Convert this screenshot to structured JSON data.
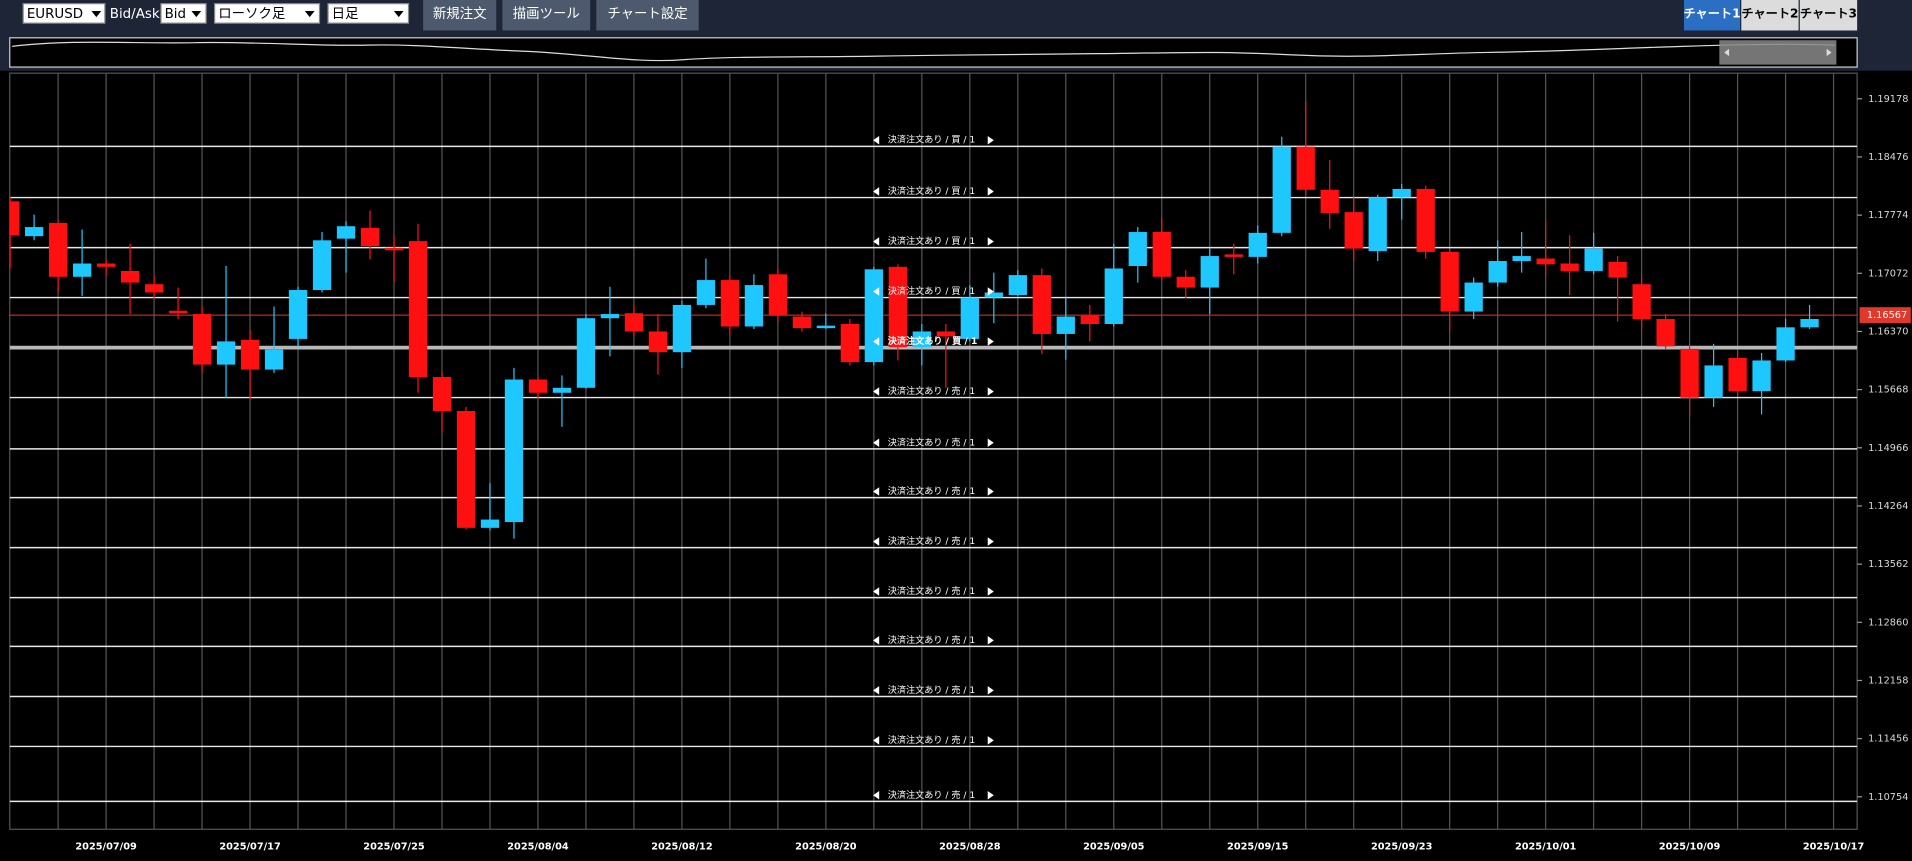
{
  "toolbar": {
    "symbol": "EURUSD",
    "bidask_label": "Bid/Ask",
    "bidask": "Bid",
    "chart_style": "ローソク足",
    "period": "日足",
    "buttons": [
      "新規注文",
      "描画ツール",
      "チャート設定"
    ],
    "tabs": [
      "チャート1",
      "チャート2",
      "チャート3"
    ]
  },
  "chart_data": {
    "type": "candlestick",
    "x": [
      "2025/07/03",
      "2025/07/04",
      "2025/07/07",
      "2025/07/08",
      "2025/07/09",
      "2025/07/10",
      "2025/07/11",
      "2025/07/14",
      "2025/07/15",
      "2025/07/16",
      "2025/07/17",
      "2025/07/18",
      "2025/07/21",
      "2025/07/22",
      "2025/07/23",
      "2025/07/24",
      "2025/07/25",
      "2025/07/28",
      "2025/07/29",
      "2025/07/30",
      "2025/07/31",
      "2025/08/01",
      "2025/08/04",
      "2025/08/05",
      "2025/08/06",
      "2025/08/07",
      "2025/08/08",
      "2025/08/11",
      "2025/08/12",
      "2025/08/13",
      "2025/08/14",
      "2025/08/15",
      "2025/08/18",
      "2025/08/19",
      "2025/08/20",
      "2025/08/21",
      "2025/08/22",
      "2025/08/25",
      "2025/08/26",
      "2025/08/27",
      "2025/08/28",
      "2025/08/29",
      "2025/09/01",
      "2025/09/02",
      "2025/09/03",
      "2025/09/04",
      "2025/09/05",
      "2025/09/08",
      "2025/09/09",
      "2025/09/10",
      "2025/09/11",
      "2025/09/12",
      "2025/09/15",
      "2025/09/16",
      "2025/09/17",
      "2025/09/18",
      "2025/09/19",
      "2025/09/22",
      "2025/09/23",
      "2025/09/24",
      "2025/09/25",
      "2025/09/26",
      "2025/09/29",
      "2025/09/30",
      "2025/10/01",
      "2025/10/02",
      "2025/10/03",
      "2025/10/06",
      "2025/10/07",
      "2025/10/08",
      "2025/10/09",
      "2025/10/10",
      "2025/10/13",
      "2025/10/14",
      "2025/10/15",
      "2025/10/16",
      "2025/10/17"
    ],
    "open": [
      1.1794,
      1.1752,
      1.1768,
      1.1703,
      1.1719,
      1.171,
      1.1694,
      1.1662,
      1.1658,
      1.1597,
      1.1627,
      1.1591,
      1.1628,
      1.1687,
      1.1749,
      1.1762,
      1.1738,
      1.1746,
      1.1582,
      1.1541,
      1.14,
      1.1407,
      1.1579,
      1.1563,
      1.1569,
      1.1653,
      1.1659,
      1.1637,
      1.1612,
      1.1669,
      1.1699,
      1.1643,
      1.1706,
      1.1655,
      1.1641,
      1.1646,
      1.16,
      1.1715,
      1.1618,
      1.1637,
      1.1628,
      1.1678,
      1.1681,
      1.1705,
      1.1634,
      1.1656,
      1.1646,
      1.1716,
      1.1757,
      1.1703,
      1.169,
      1.173,
      1.1727,
      1.1756,
      1.186,
      1.1808,
      1.1781,
      1.1734,
      1.1799,
      1.1809,
      1.1733,
      1.1661,
      1.1696,
      1.1722,
      1.1725,
      1.1719,
      1.171,
      1.1721,
      1.1694,
      1.1652,
      1.1616,
      1.1557,
      1.1605,
      1.1565,
      1.1602,
      1.1642,
      null
    ],
    "high": [
      1.18,
      1.1778,
      1.1771,
      1.176,
      1.1724,
      1.1743,
      1.1705,
      1.169,
      1.1667,
      1.1716,
      1.1639,
      1.1667,
      1.1691,
      1.1757,
      1.177,
      1.1783,
      1.1753,
      1.1767,
      1.1588,
      1.1546,
      1.1454,
      1.1593,
      1.1581,
      1.1584,
      1.1658,
      1.1691,
      1.1669,
      1.1658,
      1.1674,
      1.1725,
      1.1705,
      1.1706,
      1.1713,
      1.1661,
      1.1659,
      1.1652,
      1.1715,
      1.1718,
      1.1646,
      1.1646,
      1.1693,
      1.1708,
      1.1711,
      1.1713,
      1.1678,
      1.1669,
      1.1743,
      1.1763,
      1.1775,
      1.1711,
      1.1738,
      1.1743,
      1.1765,
      1.1872,
      1.1915,
      1.1844,
      1.1799,
      1.1802,
      1.1815,
      1.1813,
      1.1736,
      1.1702,
      1.1747,
      1.1757,
      1.1772,
      1.1753,
      1.1756,
      1.1728,
      1.1705,
      1.1658,
      1.1621,
      1.1622,
      1.1613,
      1.1611,
      1.1652,
      1.1669,
      null
    ],
    "low": [
      1.1713,
      1.1747,
      1.1684,
      1.168,
      1.1705,
      1.1658,
      1.1677,
      1.1652,
      1.1587,
      1.1557,
      1.1555,
      1.1587,
      1.1618,
      1.1684,
      1.1708,
      1.1724,
      1.1697,
      1.1563,
      1.1515,
      1.1398,
      1.1397,
      1.1387,
      1.1556,
      1.1522,
      1.1568,
      1.1607,
      1.1631,
      1.1585,
      1.1593,
      1.1665,
      1.1633,
      1.164,
      1.1649,
      1.1637,
      1.164,
      1.1596,
      1.1596,
      1.1602,
      1.1596,
      1.1569,
      1.1625,
      1.1647,
      1.168,
      1.161,
      1.1603,
      1.1625,
      1.1643,
      1.1696,
      1.1699,
      1.1677,
      1.1658,
      1.1706,
      1.1719,
      1.1752,
      1.1802,
      1.1761,
      1.1722,
      1.1722,
      1.1772,
      1.1725,
      1.1637,
      1.1652,
      1.1691,
      1.1708,
      1.1703,
      1.1681,
      1.1706,
      1.1649,
      1.164,
      1.1616,
      1.1534,
      1.1546,
      1.156,
      1.1537,
      1.16,
      1.164,
      null
    ],
    "close": [
      1.1753,
      1.1763,
      1.1703,
      1.1719,
      1.1715,
      1.1696,
      1.1684,
      1.1659,
      1.1597,
      1.1625,
      1.1591,
      1.1615,
      1.1687,
      1.1747,
      1.1764,
      1.174,
      1.1735,
      1.1582,
      1.1541,
      1.14,
      1.141,
      1.1579,
      1.1563,
      1.1569,
      1.1653,
      1.1658,
      1.1637,
      1.1612,
      1.1669,
      1.1699,
      1.1643,
      1.1693,
      1.1656,
      1.1641,
      1.1644,
      1.16,
      1.1712,
      1.1618,
      1.1637,
      1.1631,
      1.1678,
      1.1684,
      1.1705,
      1.1634,
      1.1655,
      1.1646,
      1.1713,
      1.1757,
      1.1703,
      1.169,
      1.1728,
      1.1727,
      1.1756,
      1.186,
      1.1808,
      1.178,
      1.1737,
      1.1799,
      1.1809,
      1.1733,
      1.1661,
      1.1696,
      1.1722,
      1.1728,
      1.1718,
      1.171,
      1.1737,
      1.1702,
      1.1652,
      1.1619,
      1.1557,
      1.1596,
      1.1565,
      1.1602,
      1.1642,
      1.1652,
      null
    ],
    "up_color": "#1ec8ff",
    "down_color": "#ff1010",
    "ylim": [
      1.10362,
      1.19487
    ],
    "yticks": [
      1.19178,
      1.18476,
      1.17774,
      1.17072,
      {
        "value": 1.1637,
        "label": "1.16370"
      },
      1.15668,
      1.14966,
      1.14264,
      1.13562,
      {
        "value": 1.1286,
        "label": "1.12860"
      },
      1.12158,
      1.11456,
      1.10754
    ],
    "xticks": [
      "2025/07/09",
      "2025/07/17",
      "2025/07/25",
      "2025/08/04",
      "2025/08/12",
      "2025/08/20",
      "2025/08/28",
      "2025/09/05",
      "2025/09/15",
      "2025/09/23",
      "2025/10/01",
      "2025/10/09",
      "2025/10/17"
    ],
    "current_price": 1.16567,
    "current_price_color": "#e0392b",
    "order_lines": [
      {
        "price": 1.18604,
        "label": "決済注文あり / 買 / 1"
      },
      {
        "price": 1.17986,
        "label": "決済注文あり / 買 / 1"
      },
      {
        "price": 1.17382,
        "label": "決済注文あり / 買 / 1"
      },
      {
        "price": 1.16779,
        "label": "決済注文あり / 買 / 1"
      },
      {
        "price": 1.16175,
        "label": "決済注文あり / 買 / 1",
        "highlight": true
      },
      {
        "price": 1.15572,
        "label": "決済注文あり / 売 / 1"
      },
      {
        "price": 1.14953,
        "label": "決済注文あり / 売 / 1"
      },
      {
        "price": 1.14365,
        "label": "決済注文あり / 売 / 1"
      },
      {
        "price": 1.13761,
        "label": "決済注文あり / 売 / 1"
      },
      {
        "price": 1.13158,
        "label": "決済注文あり / 売 / 1"
      },
      {
        "price": 1.12569,
        "label": "決済注文あり / 売 / 1"
      },
      {
        "price": 1.11965,
        "label": "決済注文あり / 売 / 1"
      },
      {
        "price": 1.11362,
        "label": "決済注文あり / 売 / 1"
      },
      {
        "price": 1.10699,
        "label": "決済注文あり / 売 / 1"
      }
    ]
  }
}
